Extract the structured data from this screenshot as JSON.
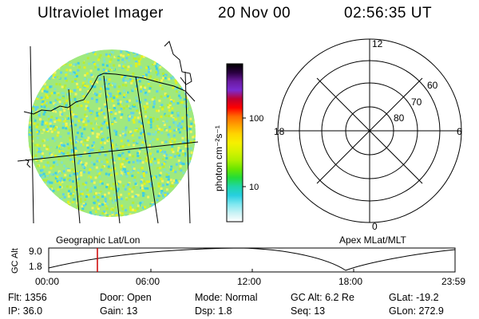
{
  "header": {
    "instrument": "Ultraviolet Imager",
    "date": "20 Nov 00",
    "time": "02:56:35 UT"
  },
  "image_panel": {
    "label": "Geographic Lat/Lon",
    "texture_colors": [
      "#5fd1ea",
      "#7fe3c4",
      "#b7ec35",
      "#e2f11f",
      "#f3f45b",
      "#3ecfe1",
      "#9fe97e"
    ]
  },
  "colorbar": {
    "unit": "photon cm⁻²s⁻¹",
    "ticks": [
      "100",
      "10"
    ],
    "colors": [
      "#000000",
      "#2a0040",
      "#6a1aa0",
      "#7a2bd0",
      "#c00030",
      "#ff0000",
      "#ff6a00",
      "#ffa200",
      "#ffd400",
      "#f6f000",
      "#d6f200",
      "#aef000",
      "#68e600",
      "#22dc3a",
      "#1fd6a8",
      "#27cfe0",
      "#7fe7f0",
      "#c8f2f5",
      "#ffffff"
    ]
  },
  "polar_grid": {
    "label": "Apex MLat/MLT",
    "mlt_labels": {
      "top": "12",
      "right": "6",
      "bottom": "0",
      "left": "18"
    },
    "mlat_labels": [
      "60",
      "70",
      "80"
    ]
  },
  "altitude_plot": {
    "axis_label": "GC Alt",
    "y_ticks": [
      "9.0",
      "1.8"
    ],
    "x_ticks": [
      "00:00",
      "06:00",
      "12:00",
      "18:00",
      "23:59"
    ],
    "marker_color": "#cc0000"
  },
  "status": {
    "row1": [
      {
        "label": "Flt:",
        "value": "1356"
      },
      {
        "label": "Door:",
        "value": "Open"
      },
      {
        "label": "Mode:",
        "value": "Normal"
      },
      {
        "label": "GC Alt:",
        "value": "6.2 Re"
      },
      {
        "label": "GLat:",
        "value": "-19.2"
      }
    ],
    "row2": [
      {
        "label": "IP:",
        "value": "36.0"
      },
      {
        "label": "Gain:",
        "value": "13"
      },
      {
        "label": "Dsp:",
        "value": "1.8"
      },
      {
        "label": "Seq:",
        "value": "13"
      },
      {
        "label": "GLon:",
        "value": "272.9"
      }
    ]
  }
}
